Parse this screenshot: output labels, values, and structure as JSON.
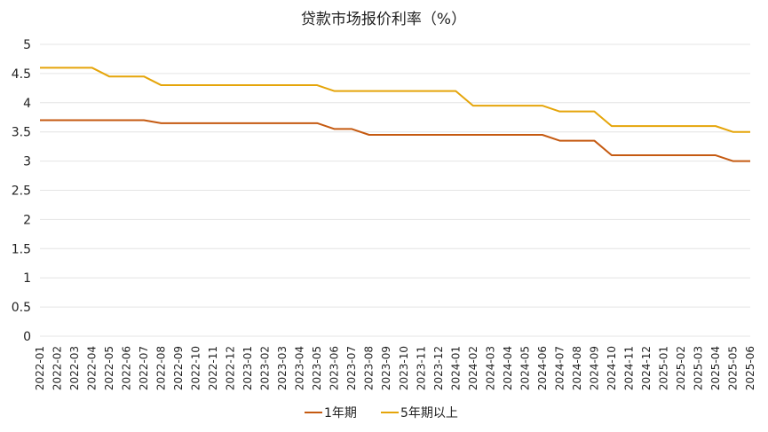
{
  "chart_data": {
    "type": "line",
    "title": "贷款市场报价利率（%）",
    "xlabel": "",
    "ylabel": "",
    "ylim": [
      0,
      5
    ],
    "yticks": [
      0,
      0.5,
      1,
      1.5,
      2,
      2.5,
      3,
      3.5,
      4,
      4.5,
      5
    ],
    "ytick_labels": [
      "0",
      "0.5",
      "1",
      "1.5",
      "2",
      "2.5",
      "3",
      "3.5",
      "4",
      "4.5",
      "5"
    ],
    "grid": true,
    "legend_position": "bottom",
    "categories": [
      "2022-01",
      "2022-02",
      "2022-03",
      "2022-04",
      "2022-05",
      "2022-06",
      "2022-07",
      "2022-08",
      "2022-09",
      "2022-10",
      "2022-11",
      "2022-12",
      "2023-01",
      "2023-02",
      "2023-03",
      "2023-04",
      "2023-05",
      "2023-06",
      "2023-07",
      "2023-08",
      "2023-09",
      "2023-10",
      "2023-11",
      "2023-12",
      "2024-01",
      "2024-02",
      "2024-03",
      "2024-04",
      "2024-05",
      "2024-06",
      "2024-07",
      "2024-08",
      "2024-09",
      "2024-10",
      "2024-11",
      "2024-12",
      "2025-01",
      "2025-02",
      "2025-03",
      "2025-04",
      "2025-05",
      "2025-06"
    ],
    "series": [
      {
        "name": "1年期",
        "color": "#c55a11",
        "values": [
          3.7,
          3.7,
          3.7,
          3.7,
          3.7,
          3.7,
          3.7,
          3.65,
          3.65,
          3.65,
          3.65,
          3.65,
          3.65,
          3.65,
          3.65,
          3.65,
          3.65,
          3.55,
          3.55,
          3.45,
          3.45,
          3.45,
          3.45,
          3.45,
          3.45,
          3.45,
          3.45,
          3.45,
          3.45,
          3.45,
          3.35,
          3.35,
          3.35,
          3.1,
          3.1,
          3.1,
          3.1,
          3.1,
          3.1,
          3.1,
          3.0,
          3.0
        ]
      },
      {
        "name": "5年期以上",
        "color": "#e5a50a",
        "values": [
          4.6,
          4.6,
          4.6,
          4.6,
          4.45,
          4.45,
          4.45,
          4.3,
          4.3,
          4.3,
          4.3,
          4.3,
          4.3,
          4.3,
          4.3,
          4.3,
          4.3,
          4.2,
          4.2,
          4.2,
          4.2,
          4.2,
          4.2,
          4.2,
          4.2,
          3.95,
          3.95,
          3.95,
          3.95,
          3.95,
          3.85,
          3.85,
          3.85,
          3.6,
          3.6,
          3.6,
          3.6,
          3.6,
          3.6,
          3.6,
          3.5,
          3.5
        ]
      }
    ]
  }
}
